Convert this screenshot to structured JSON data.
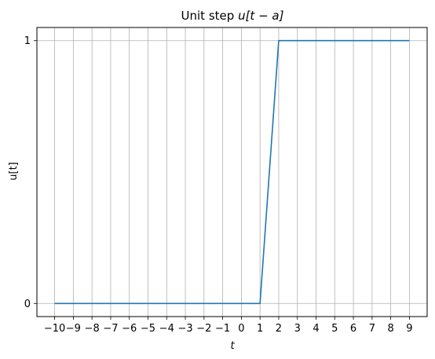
{
  "chart_data": {
    "type": "line",
    "title_prefix": "Unit step ",
    "title_math": "u[t − a]",
    "xlabel": "t",
    "ylabel": "u[t]",
    "x": [
      -10,
      -9,
      -8,
      -7,
      -6,
      -5,
      -4,
      -3,
      -2,
      -1,
      0,
      1,
      2,
      3,
      4,
      5,
      6,
      7,
      8,
      9
    ],
    "series": [
      {
        "values": [
          0,
          0,
          0,
          0,
          0,
          0,
          0,
          0,
          0,
          0,
          0,
          0,
          1,
          1,
          1,
          1,
          1,
          1,
          1,
          1
        ]
      }
    ],
    "xlim": [
      -10.95,
      9.95
    ],
    "ylim": [
      -0.05,
      1.05
    ],
    "xticks": [
      -10,
      -9,
      -8,
      -7,
      -6,
      -5,
      -4,
      -3,
      -2,
      -1,
      0,
      1,
      2,
      3,
      4,
      5,
      6,
      7,
      8,
      9
    ],
    "xtick_labels": [
      "−10",
      "−9",
      "−8",
      "−7",
      "−6",
      "−5",
      "−4",
      "−3",
      "−2",
      "−1",
      "0",
      "1",
      "2",
      "3",
      "4",
      "5",
      "6",
      "7",
      "8",
      "9"
    ],
    "yticks": [
      0,
      1
    ],
    "ytick_labels": [
      "0",
      "1"
    ],
    "grid": true,
    "colors": {
      "line": "#1f77b4",
      "grid": "#b0b0b0",
      "axes": "#000000"
    }
  }
}
